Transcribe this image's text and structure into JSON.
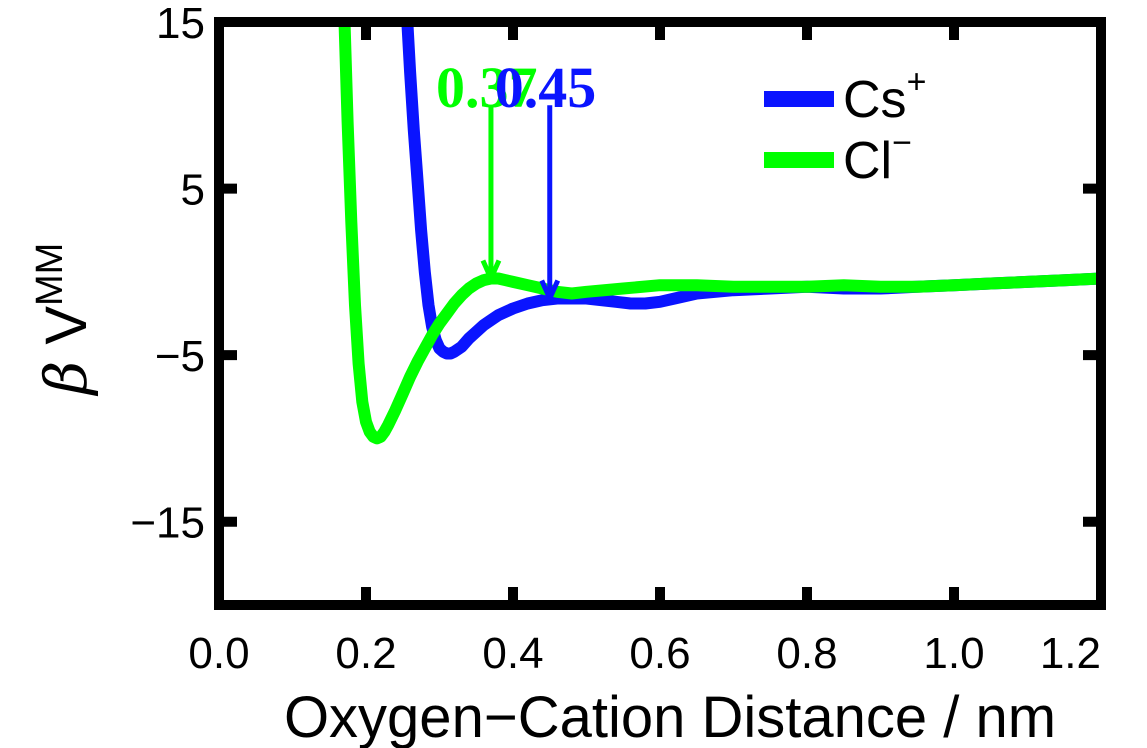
{
  "chart_data": {
    "type": "line",
    "xlabel": "Oxygen−Cation Distance / nm",
    "ylabel": {
      "symbol": "β",
      "base": "V",
      "superscript": "MM"
    },
    "xlim": [
      0.0,
      1.2
    ],
    "ylim": [
      -20,
      15
    ],
    "x_ticks": [
      0.0,
      0.2,
      0.4,
      0.6,
      0.8,
      1.0,
      1.2
    ],
    "x_tick_labels": [
      "0.0",
      "0.2",
      "0.4",
      "0.6",
      "0.8",
      "1.0",
      "1.2"
    ],
    "y_ticks": [
      15,
      5,
      -5,
      -15
    ],
    "y_tick_labels": [
      "15",
      "5",
      "−5",
      "−15"
    ],
    "grid": false,
    "legend_position": "top-right",
    "colors": {
      "Cs": "#0a14ff",
      "Cl": "#00ff00"
    },
    "series": [
      {
        "name": "Cs",
        "charge": "+",
        "color": "#0a14ff",
        "x": [
          0.255,
          0.26,
          0.265,
          0.27,
          0.275,
          0.28,
          0.285,
          0.29,
          0.295,
          0.3,
          0.305,
          0.31,
          0.315,
          0.32,
          0.33,
          0.34,
          0.35,
          0.36,
          0.37,
          0.38,
          0.39,
          0.4,
          0.42,
          0.44,
          0.46,
          0.48,
          0.5,
          0.52,
          0.54,
          0.56,
          0.58,
          0.6,
          0.62,
          0.65,
          0.7,
          0.75,
          0.8,
          0.85,
          0.9,
          0.95,
          1.0,
          1.05,
          1.1,
          1.15,
          1.2
        ],
        "y": [
          16,
          12,
          8.5,
          5.5,
          2.5,
          0.0,
          -2.0,
          -3.3,
          -4.1,
          -4.6,
          -4.8,
          -4.9,
          -4.9,
          -4.8,
          -4.5,
          -4.0,
          -3.6,
          -3.2,
          -2.9,
          -2.6,
          -2.4,
          -2.2,
          -1.9,
          -1.7,
          -1.6,
          -1.6,
          -1.6,
          -1.7,
          -1.8,
          -1.9,
          -1.9,
          -1.8,
          -1.6,
          -1.3,
          -1.1,
          -1.0,
          -0.9,
          -1.0,
          -1.0,
          -0.9,
          -0.8,
          -0.7,
          -0.6,
          -0.5,
          -0.4
        ]
      },
      {
        "name": "Cl",
        "charge": "−",
        "color": "#00ff00",
        "x": [
          0.17,
          0.175,
          0.18,
          0.185,
          0.19,
          0.195,
          0.2,
          0.205,
          0.21,
          0.215,
          0.22,
          0.225,
          0.23,
          0.24,
          0.25,
          0.26,
          0.27,
          0.28,
          0.29,
          0.3,
          0.31,
          0.32,
          0.33,
          0.34,
          0.35,
          0.36,
          0.37,
          0.38,
          0.39,
          0.4,
          0.42,
          0.44,
          0.46,
          0.48,
          0.5,
          0.55,
          0.6,
          0.65,
          0.7,
          0.75,
          0.8,
          0.85,
          0.9,
          0.95,
          1.0,
          1.05,
          1.1,
          1.15,
          1.2
        ],
        "y": [
          16,
          9.0,
          3.0,
          -2.0,
          -5.5,
          -7.8,
          -9.0,
          -9.6,
          -9.9,
          -10.0,
          -9.9,
          -9.6,
          -9.2,
          -8.3,
          -7.3,
          -6.3,
          -5.4,
          -4.6,
          -3.8,
          -3.1,
          -2.5,
          -1.9,
          -1.4,
          -1.0,
          -0.7,
          -0.5,
          -0.4,
          -0.4,
          -0.5,
          -0.6,
          -0.8,
          -1.0,
          -1.2,
          -1.3,
          -1.2,
          -1.0,
          -0.8,
          -0.8,
          -0.9,
          -0.9,
          -0.9,
          -0.8,
          -0.9,
          -0.9,
          -0.8,
          -0.7,
          -0.6,
          -0.5,
          -0.4
        ]
      }
    ],
    "annotations": [
      {
        "label": "0.37",
        "x": 0.37,
        "y_tip": -0.4,
        "y_tail": 10,
        "color": "#00ff00"
      },
      {
        "label": "0.45",
        "x": 0.45,
        "y_tip": -1.6,
        "y_tail": 10,
        "color": "#0a14ff"
      }
    ]
  }
}
